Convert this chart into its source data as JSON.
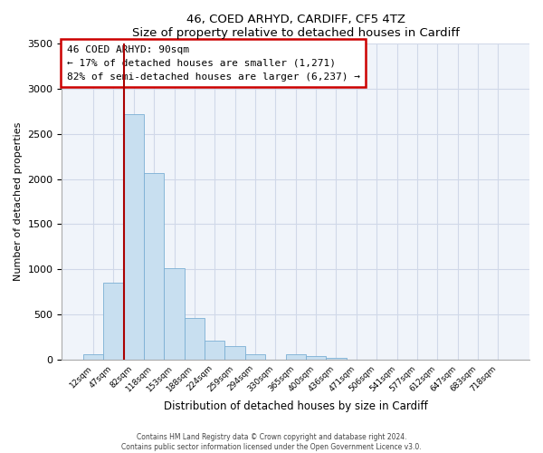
{
  "title1": "46, COED ARHYD, CARDIFF, CF5 4TZ",
  "title2": "Size of property relative to detached houses in Cardiff",
  "xlabel": "Distribution of detached houses by size in Cardiff",
  "ylabel": "Number of detached properties",
  "bar_labels": [
    "12sqm",
    "47sqm",
    "82sqm",
    "118sqm",
    "153sqm",
    "188sqm",
    "224sqm",
    "259sqm",
    "294sqm",
    "330sqm",
    "365sqm",
    "400sqm",
    "436sqm",
    "471sqm",
    "506sqm",
    "541sqm",
    "577sqm",
    "612sqm",
    "647sqm",
    "683sqm",
    "718sqm"
  ],
  "bar_values": [
    55,
    850,
    2720,
    2070,
    1010,
    455,
    205,
    145,
    60,
    0,
    55,
    40,
    20,
    0,
    0,
    0,
    0,
    0,
    0,
    0,
    0
  ],
  "bar_color": "#c8dff0",
  "bar_edge_color": "#7bafd4",
  "vline_index": 2,
  "vline_color": "#aa0000",
  "ylim": [
    0,
    3500
  ],
  "yticks": [
    0,
    500,
    1000,
    1500,
    2000,
    2500,
    3000,
    3500
  ],
  "annotation_line1": "46 COED ARHYD: 90sqm",
  "annotation_line2": "← 17% of detached houses are smaller (1,271)",
  "annotation_line3": "82% of semi-detached houses are larger (6,237) →",
  "footer1": "Contains HM Land Registry data © Crown copyright and database right 2024.",
  "footer2": "Contains public sector information licensed under the Open Government Licence v3.0.",
  "bg_color": "#ffffff",
  "plot_bg_color": "#f0f4fa",
  "grid_color": "#d0d8e8"
}
